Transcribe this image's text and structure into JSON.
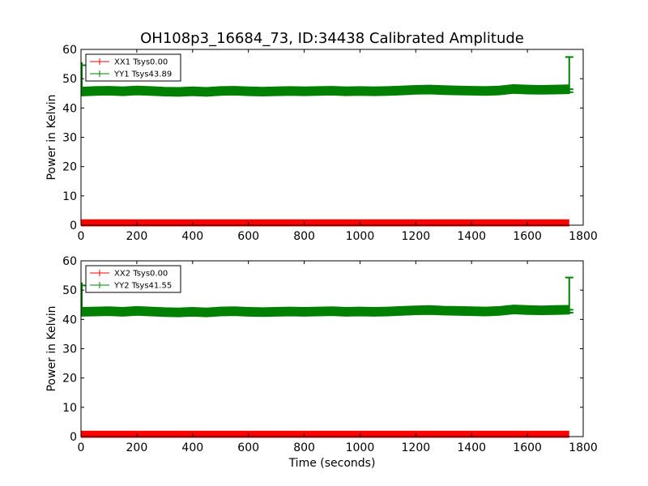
{
  "figure": {
    "title": "OH108p3_16684_73, ID:34438 Calibrated Amplitude"
  },
  "colors": {
    "xx_series": "#ff0000",
    "yy_series": "#008000",
    "axes": "#000000",
    "background": "#ffffff"
  },
  "chart_data": [
    {
      "type": "line",
      "xlabel": "",
      "ylabel": "Power in Kelvin",
      "xlim": [
        0,
        1800
      ],
      "ylim": [
        0,
        60
      ],
      "x_ticks": [
        "0",
        "200",
        "400",
        "600",
        "800",
        "1000",
        "1200",
        "1400",
        "1600",
        "1800"
      ],
      "y_ticks": [
        "0",
        "10",
        "20",
        "30",
        "40",
        "50",
        "60"
      ],
      "grid": false,
      "legend_position": "top-left",
      "series": [
        {
          "name": "XX1 Tsys0.00",
          "color": "#ff0000",
          "error_band": 1.5,
          "x": [
            0,
            1750
          ],
          "y": [
            0.5,
            0.5
          ]
        },
        {
          "name": "YY1 Tsys43.89",
          "color": "#008000",
          "error_band": 1.5,
          "x": [
            0,
            50,
            100,
            150,
            200,
            250,
            300,
            350,
            400,
            450,
            500,
            550,
            600,
            650,
            700,
            750,
            800,
            850,
            900,
            950,
            1000,
            1050,
            1100,
            1150,
            1200,
            1250,
            1300,
            1350,
            1400,
            1450,
            1500,
            1550,
            1600,
            1650,
            1700,
            1750
          ],
          "y": [
            45.6,
            45.8,
            45.9,
            45.7,
            46.0,
            45.8,
            45.6,
            45.5,
            45.7,
            45.5,
            45.8,
            45.9,
            45.7,
            45.6,
            45.7,
            45.8,
            45.7,
            45.8,
            45.9,
            45.7,
            45.8,
            45.7,
            45.8,
            46.0,
            46.2,
            46.3,
            46.1,
            46.0,
            45.9,
            45.8,
            46.0,
            46.5,
            46.3,
            46.2,
            46.3,
            46.4
          ]
        }
      ]
    },
    {
      "type": "line",
      "xlabel": "Time (seconds)",
      "ylabel": "Power in Kelvin",
      "xlim": [
        0,
        1800
      ],
      "ylim": [
        0,
        60
      ],
      "x_ticks": [
        "0",
        "200",
        "400",
        "600",
        "800",
        "1000",
        "1200",
        "1400",
        "1600",
        "1800"
      ],
      "y_ticks": [
        "0",
        "10",
        "20",
        "30",
        "40",
        "50",
        "60"
      ],
      "grid": false,
      "legend_position": "top-left",
      "series": [
        {
          "name": "XX2 Tsys0.00",
          "color": "#ff0000",
          "error_band": 1.5,
          "x": [
            0,
            1750
          ],
          "y": [
            0.5,
            0.5
          ]
        },
        {
          "name": "YY2 Tsys41.55",
          "color": "#008000",
          "error_band": 1.5,
          "x": [
            0,
            50,
            100,
            150,
            200,
            250,
            300,
            350,
            400,
            450,
            500,
            550,
            600,
            650,
            700,
            750,
            800,
            850,
            900,
            950,
            1000,
            1050,
            1100,
            1150,
            1200,
            1250,
            1300,
            1350,
            1400,
            1450,
            1500,
            1550,
            1600,
            1650,
            1700,
            1750
          ],
          "y": [
            42.6,
            42.7,
            42.8,
            42.6,
            42.9,
            42.7,
            42.5,
            42.4,
            42.6,
            42.4,
            42.7,
            42.8,
            42.6,
            42.5,
            42.6,
            42.7,
            42.6,
            42.7,
            42.8,
            42.6,
            42.7,
            42.6,
            42.7,
            42.9,
            43.1,
            43.2,
            43.0,
            42.9,
            42.8,
            42.7,
            42.9,
            43.4,
            43.2,
            43.1,
            43.2,
            43.3
          ]
        }
      ]
    }
  ]
}
